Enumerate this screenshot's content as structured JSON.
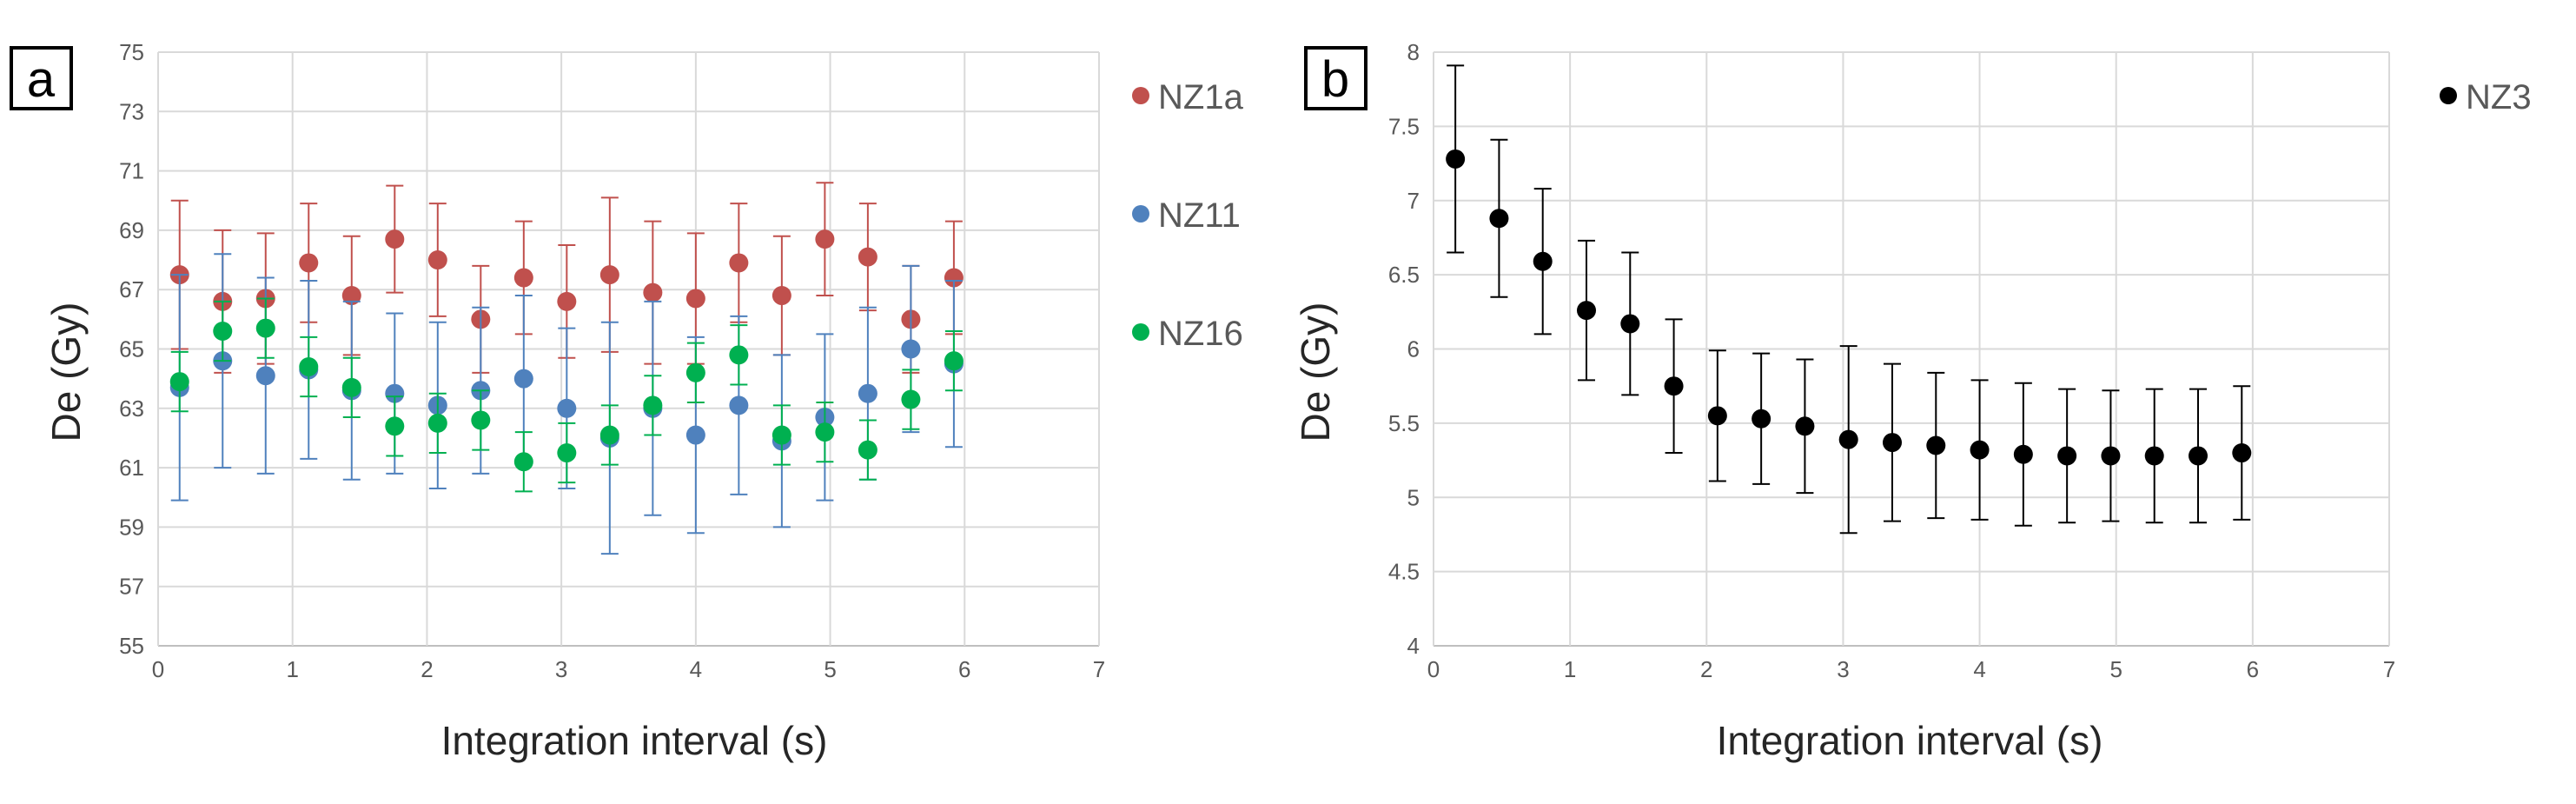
{
  "chart_data": [
    {
      "type": "scatter",
      "panel_label": "a",
      "xlabel": "Integration interval (s)",
      "ylabel": "De (Gy)",
      "xlim": [
        0,
        7
      ],
      "ylim": [
        55,
        75
      ],
      "xticks": [
        0,
        1,
        2,
        3,
        4,
        5,
        6,
        7
      ],
      "yticks": [
        55,
        57,
        59,
        61,
        63,
        65,
        67,
        69,
        71,
        73,
        75
      ],
      "grid": true,
      "legend": "right",
      "series": [
        {
          "name": "NZ1a",
          "color": "#c0504d",
          "x": [
            0.16,
            0.48,
            0.8,
            1.12,
            1.44,
            1.76,
            2.08,
            2.4,
            2.72,
            3.04,
            3.36,
            3.68,
            4.0,
            4.32,
            4.64,
            4.96,
            5.28,
            5.6,
            5.92
          ],
          "y": [
            67.5,
            66.6,
            66.7,
            67.9,
            66.8,
            68.7,
            68.0,
            66.0,
            67.4,
            66.6,
            67.5,
            66.9,
            66.7,
            67.9,
            66.8,
            68.7,
            68.1,
            66.0,
            67.4
          ],
          "err": [
            2.5,
            2.4,
            2.2,
            2.0,
            2.0,
            1.8,
            1.9,
            1.8,
            1.9,
            1.9,
            2.6,
            2.4,
            2.2,
            2.0,
            2.0,
            1.9,
            1.8,
            1.8,
            1.9
          ]
        },
        {
          "name": "NZ11",
          "color": "#4f81bd",
          "x": [
            0.16,
            0.48,
            0.8,
            1.12,
            1.44,
            1.76,
            2.08,
            2.4,
            2.72,
            3.04,
            3.36,
            3.68,
            4.0,
            4.32,
            4.64,
            4.96,
            5.28,
            5.6,
            5.92
          ],
          "y": [
            63.7,
            64.6,
            64.1,
            64.3,
            63.6,
            63.5,
            63.1,
            63.6,
            64.0,
            63.0,
            62.0,
            63.0,
            62.1,
            63.1,
            61.9,
            62.7,
            63.5,
            65.0,
            64.5
          ],
          "err": [
            3.8,
            3.6,
            3.3,
            3.0,
            3.0,
            2.7,
            2.8,
            2.8,
            2.8,
            2.7,
            3.9,
            3.6,
            3.3,
            3.0,
            2.9,
            2.8,
            2.9,
            2.8,
            2.8
          ]
        },
        {
          "name": "NZ16",
          "color": "#00b050",
          "x": [
            0.16,
            0.48,
            0.8,
            1.12,
            1.44,
            1.76,
            2.08,
            2.4,
            2.72,
            3.04,
            3.36,
            3.68,
            4.0,
            4.32,
            4.64,
            4.96,
            5.28,
            5.6,
            5.92
          ],
          "y": [
            63.9,
            65.6,
            65.7,
            64.4,
            63.7,
            62.4,
            62.5,
            62.6,
            61.2,
            61.5,
            62.1,
            63.1,
            64.2,
            64.8,
            62.1,
            62.2,
            61.6,
            63.3,
            64.6
          ],
          "err": [
            1.0,
            1.0,
            1.0,
            1.0,
            1.0,
            1.0,
            1.0,
            1.0,
            1.0,
            1.0,
            1.0,
            1.0,
            1.0,
            1.0,
            1.0,
            1.0,
            1.0,
            1.0,
            1.0
          ]
        }
      ]
    },
    {
      "type": "scatter",
      "panel_label": "b",
      "xlabel": "Integration interval (s)",
      "ylabel": "De (Gy)",
      "xlim": [
        0,
        7
      ],
      "ylim": [
        4,
        8
      ],
      "xticks": [
        0,
        1,
        2,
        3,
        4,
        5,
        6,
        7
      ],
      "yticks": [
        4,
        4.5,
        5,
        5.5,
        6,
        6.5,
        7,
        7.5,
        8
      ],
      "grid": true,
      "legend": "right",
      "series": [
        {
          "name": "NZ3",
          "color": "#000000",
          "x": [
            0.16,
            0.48,
            0.8,
            1.12,
            1.44,
            1.76,
            2.08,
            2.4,
            2.72,
            3.04,
            3.36,
            3.68,
            4.0,
            4.32,
            4.64,
            4.96,
            5.28,
            5.6,
            5.92
          ],
          "y": [
            7.28,
            6.88,
            6.59,
            6.26,
            6.17,
            5.75,
            5.55,
            5.53,
            5.48,
            5.39,
            5.37,
            5.35,
            5.32,
            5.29,
            5.28,
            5.28,
            5.28,
            5.28,
            5.3
          ],
          "err": [
            0.63,
            0.53,
            0.49,
            0.47,
            0.48,
            0.45,
            0.44,
            0.44,
            0.45,
            0.63,
            0.53,
            0.49,
            0.47,
            0.48,
            0.45,
            0.44,
            0.45,
            0.45,
            0.45
          ]
        }
      ]
    }
  ]
}
